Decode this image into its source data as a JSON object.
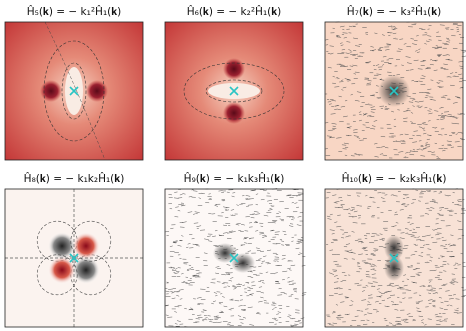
{
  "chart_data": [
    {
      "type": "heatmap",
      "title": "Ĥ₅(𝐤) = − k₁²Ĥ₁(𝐤)"
    },
    {
      "type": "heatmap",
      "title": "Ĥ₆(𝐤) = − k₂²Ĥ₁(𝐤)"
    },
    {
      "type": "heatmap",
      "title": "Ĥ₇(𝐤) = − k₃²Ĥ₁(𝐤)"
    },
    {
      "type": "heatmap",
      "title": "Ĥ₈(𝐤) = − k₁k₂Ĥ₁(𝐤)"
    },
    {
      "type": "heatmap",
      "title": "Ĥ₉(𝐤) = − k₁k₃Ĥ₁(𝐤)"
    },
    {
      "type": "heatmap",
      "title": "Ĥ₁₀(𝐤) = − k₂k₃Ĥ₁(𝐤)"
    }
  ]
}
